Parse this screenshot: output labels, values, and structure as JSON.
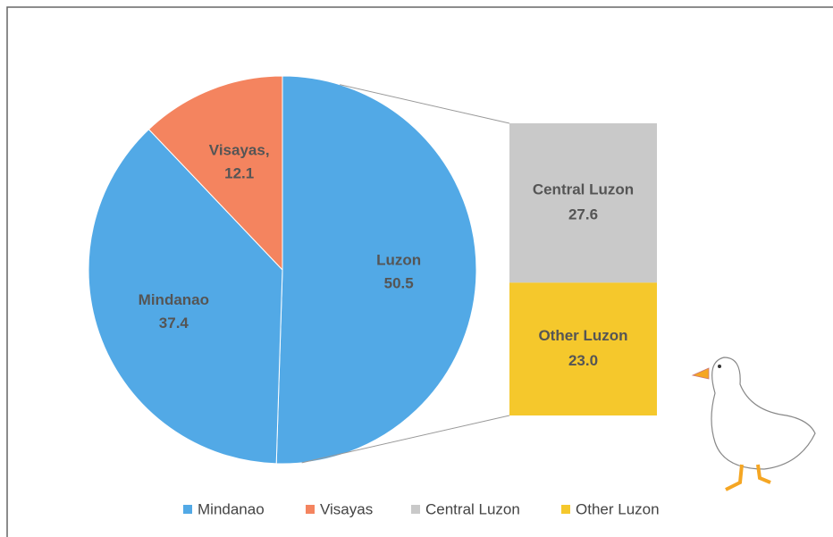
{
  "chart_data": {
    "type": "bar_of_pie",
    "pie": {
      "categories": [
        "Luzon",
        "Mindanao",
        "Visayas"
      ],
      "data_labels": [
        "Luzon",
        "Mindanao",
        "Visayas,"
      ],
      "values": [
        50.5,
        37.4,
        12.1
      ],
      "value_labels": [
        "50.5",
        "37.4",
        "12.1"
      ],
      "colors": [
        "#52a9e6",
        "#52a9e6",
        "#f4845f"
      ]
    },
    "bar": {
      "categories": [
        "Central Luzon",
        "Other Luzon"
      ],
      "values": [
        27.6,
        23.0
      ],
      "value_labels": [
        "27.6",
        "23.0"
      ],
      "colors": [
        "#c9c9c9",
        "#f5c82c"
      ]
    }
  }
}
